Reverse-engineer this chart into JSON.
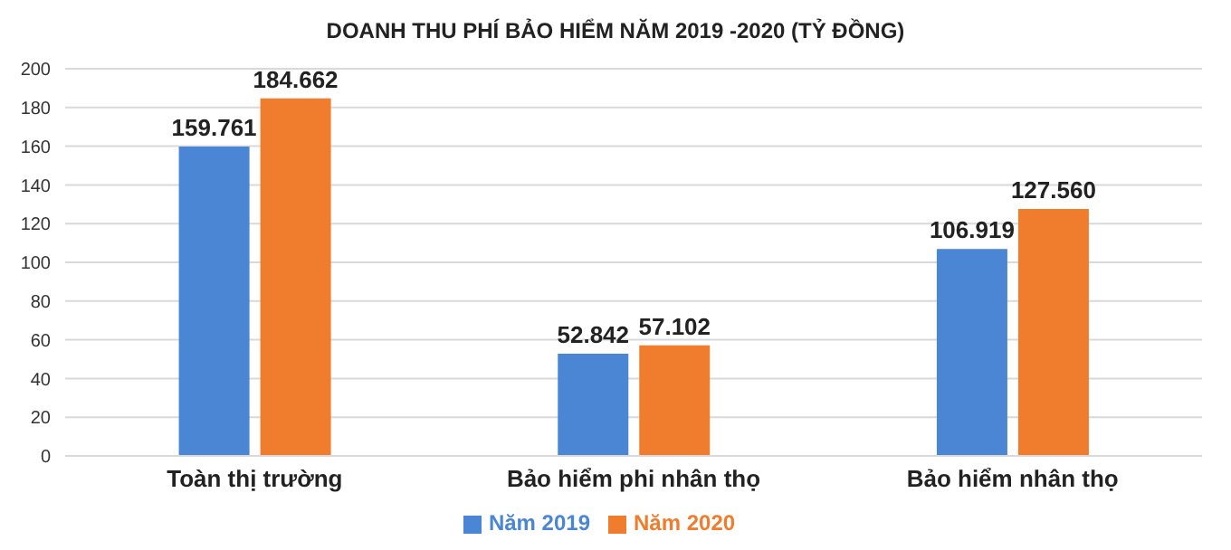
{
  "chart_data": {
    "type": "bar",
    "title": "DOANH THU PHÍ BẢO HIỂM NĂM 2019 -2020 (TỶ ĐỒNG)",
    "categories": [
      "Toàn thị trường",
      "Bảo hiểm phi nhân thọ",
      "Bảo hiểm nhân thọ"
    ],
    "series": [
      {
        "name": "Năm 2019",
        "color": "#4a86d4",
        "values": [
          159.761,
          52.842,
          106.919
        ],
        "value_labels": [
          "159.761",
          "52.842",
          "106.919"
        ]
      },
      {
        "name": "Năm 2020",
        "color": "#ef7d2d",
        "values": [
          184.662,
          57.102,
          127.56
        ],
        "value_labels": [
          "184.662",
          "57.102",
          "127.560"
        ]
      }
    ],
    "ylim": [
      0,
      200
    ],
    "yticks": [
      0,
      20,
      40,
      60,
      80,
      100,
      120,
      140,
      160,
      180,
      200
    ],
    "grid": "y",
    "legend": "bottom"
  }
}
